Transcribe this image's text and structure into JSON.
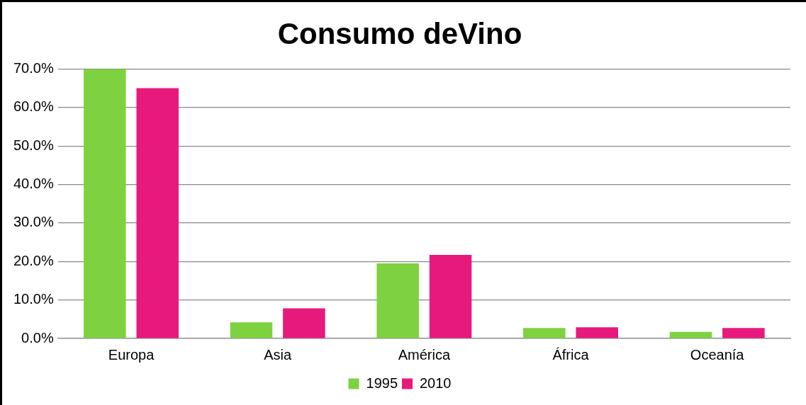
{
  "chart_data": {
    "type": "bar",
    "title": "Consumo deVino",
    "categories": [
      "Europa",
      "Asia",
      "América",
      "África",
      "Oceanía"
    ],
    "series": [
      {
        "name": "1995",
        "color": "#7ed23f",
        "values": [
          70,
          4.2,
          19.5,
          2.7,
          1.7
        ]
      },
      {
        "name": "2010",
        "color": "#e8197d",
        "values": [
          65,
          7.8,
          21.7,
          2.9,
          2.7
        ]
      }
    ],
    "ylim": [
      0,
      70
    ],
    "yticks": [
      {
        "value": 0,
        "label": "0.0%"
      },
      {
        "value": 10,
        "label": "10.0%"
      },
      {
        "value": 20,
        "label": "20.0%"
      },
      {
        "value": 30,
        "label": "30.0%"
      },
      {
        "value": 40,
        "label": "40.0%"
      },
      {
        "value": 50,
        "label": "50.0%"
      },
      {
        "value": 60,
        "label": "60.0%"
      },
      {
        "value": 70,
        "label": "70.0%"
      }
    ],
    "grid": "y",
    "legend": "bottom"
  }
}
